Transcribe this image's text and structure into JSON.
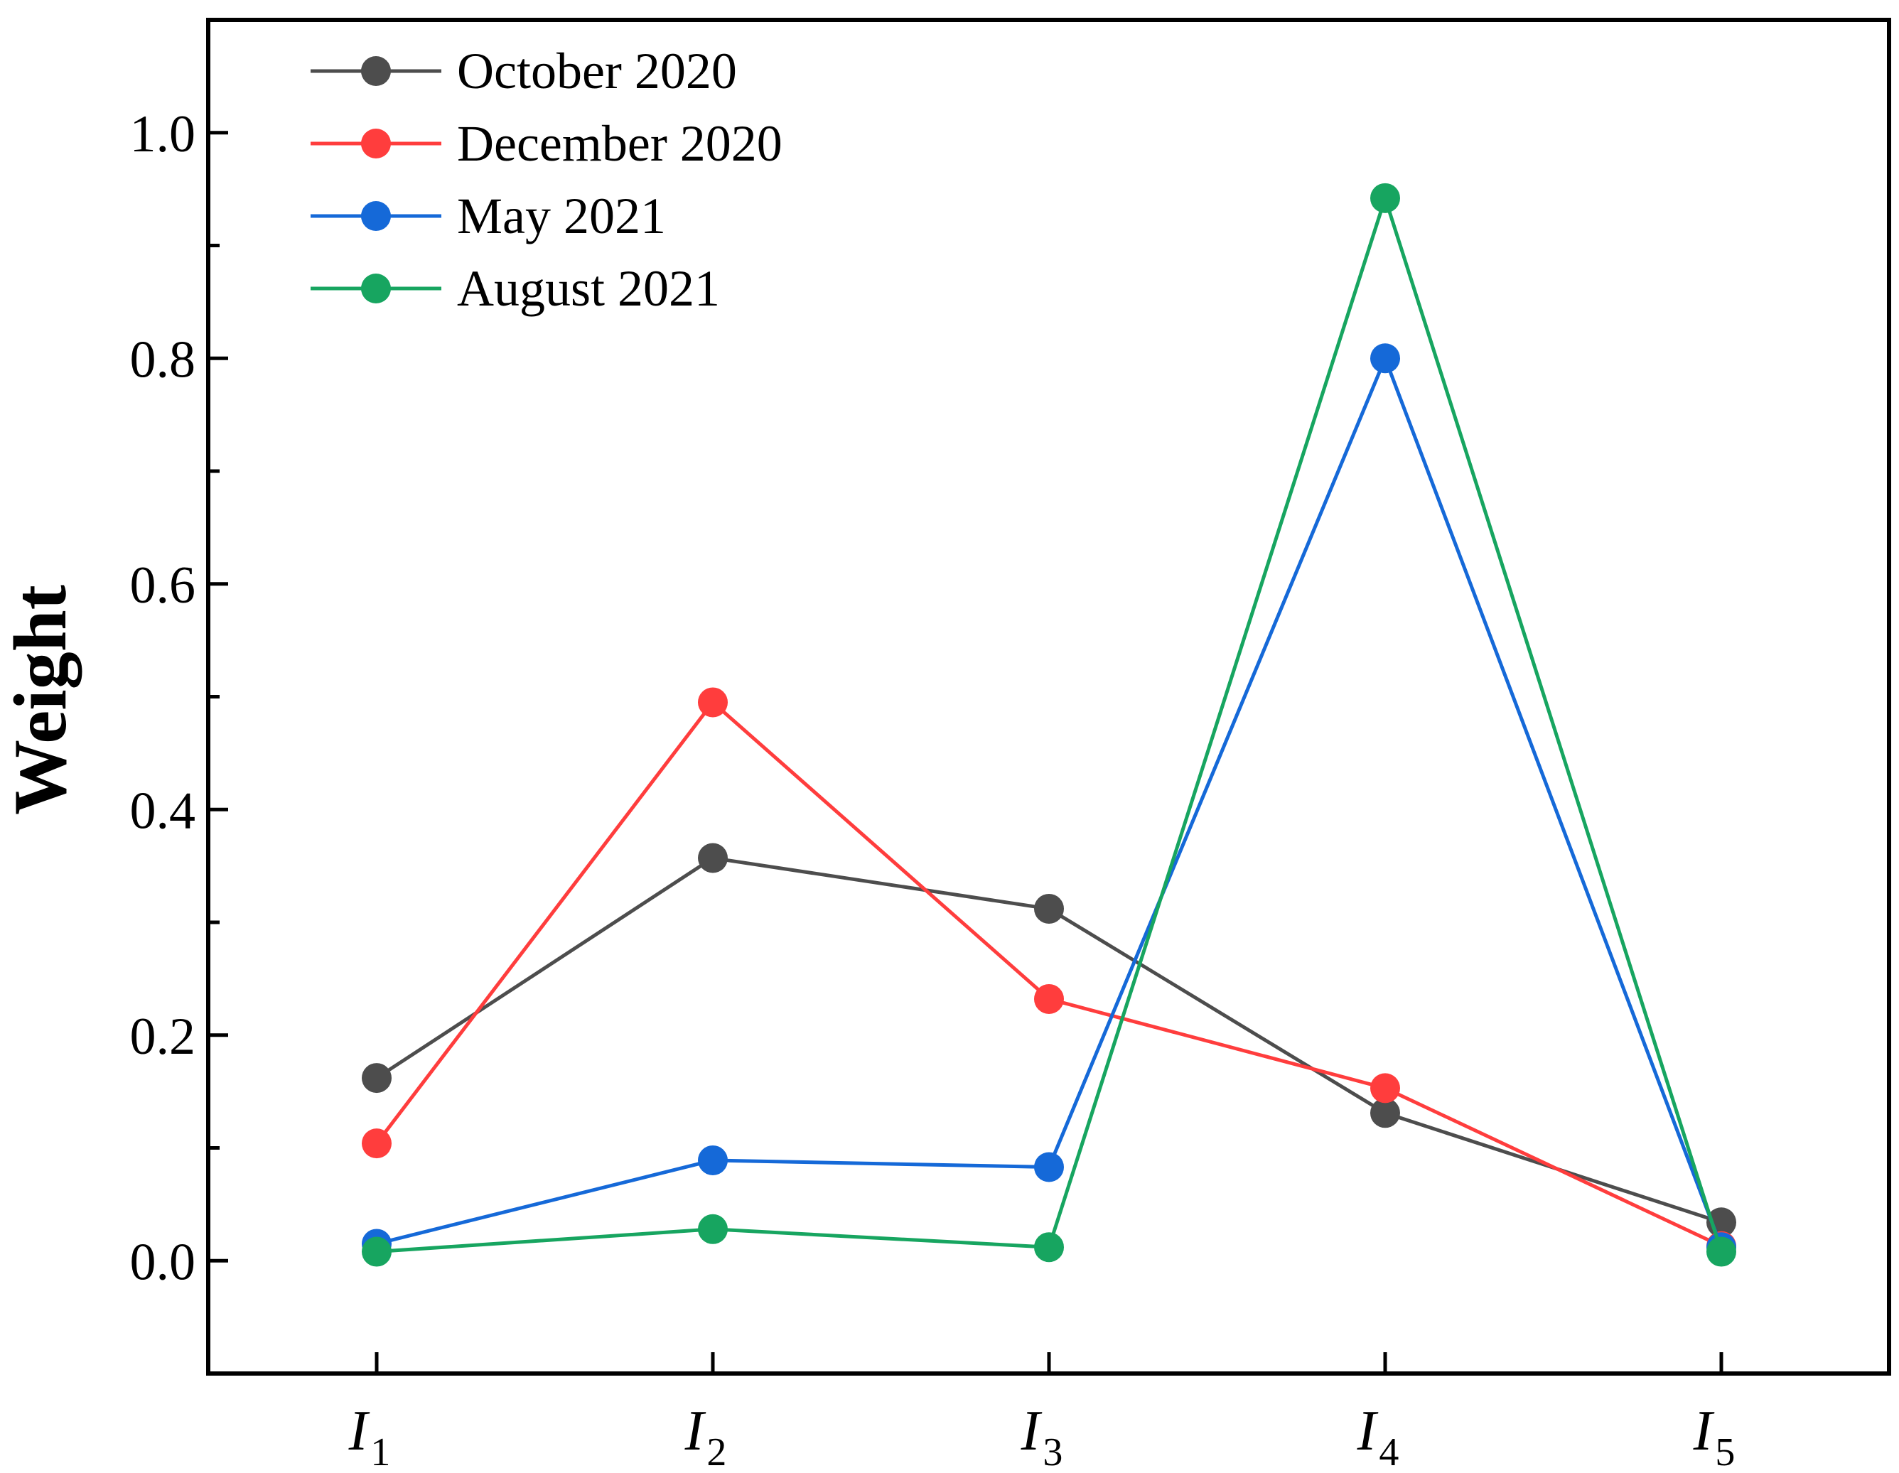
{
  "chart_data": {
    "type": "line",
    "ylabel": "Weight",
    "xlabel": "",
    "categories": [
      {
        "base": "I",
        "sub": "1"
      },
      {
        "base": "I",
        "sub": "2"
      },
      {
        "base": "I",
        "sub": "3"
      },
      {
        "base": "I",
        "sub": "4"
      },
      {
        "base": "I",
        "sub": "5"
      }
    ],
    "ylim": [
      -0.1,
      1.1
    ],
    "yticks": [
      "0.0",
      "0.2",
      "0.4",
      "0.6",
      "0.8",
      "1.0"
    ],
    "ytick_values": [
      0.0,
      0.2,
      0.4,
      0.6,
      0.8,
      1.0
    ],
    "minor_ticks": [
      -0.1,
      0.1,
      0.3,
      0.5,
      0.7,
      0.9
    ],
    "grid": false,
    "legend_position": "top-left",
    "series": [
      {
        "name": "October 2020",
        "color": "#4d4d4d",
        "values": [
          0.162,
          0.357,
          0.312,
          0.131,
          0.034
        ]
      },
      {
        "name": "December 2020",
        "color": "#ff3d3d",
        "values": [
          0.104,
          0.495,
          0.232,
          0.153,
          0.013
        ]
      },
      {
        "name": "May 2021",
        "color": "#1569d8",
        "values": [
          0.015,
          0.089,
          0.083,
          0.8,
          0.012
        ]
      },
      {
        "name": "August 2021",
        "color": "#17a560",
        "values": [
          0.008,
          0.028,
          0.012,
          0.942,
          0.008
        ]
      }
    ]
  }
}
